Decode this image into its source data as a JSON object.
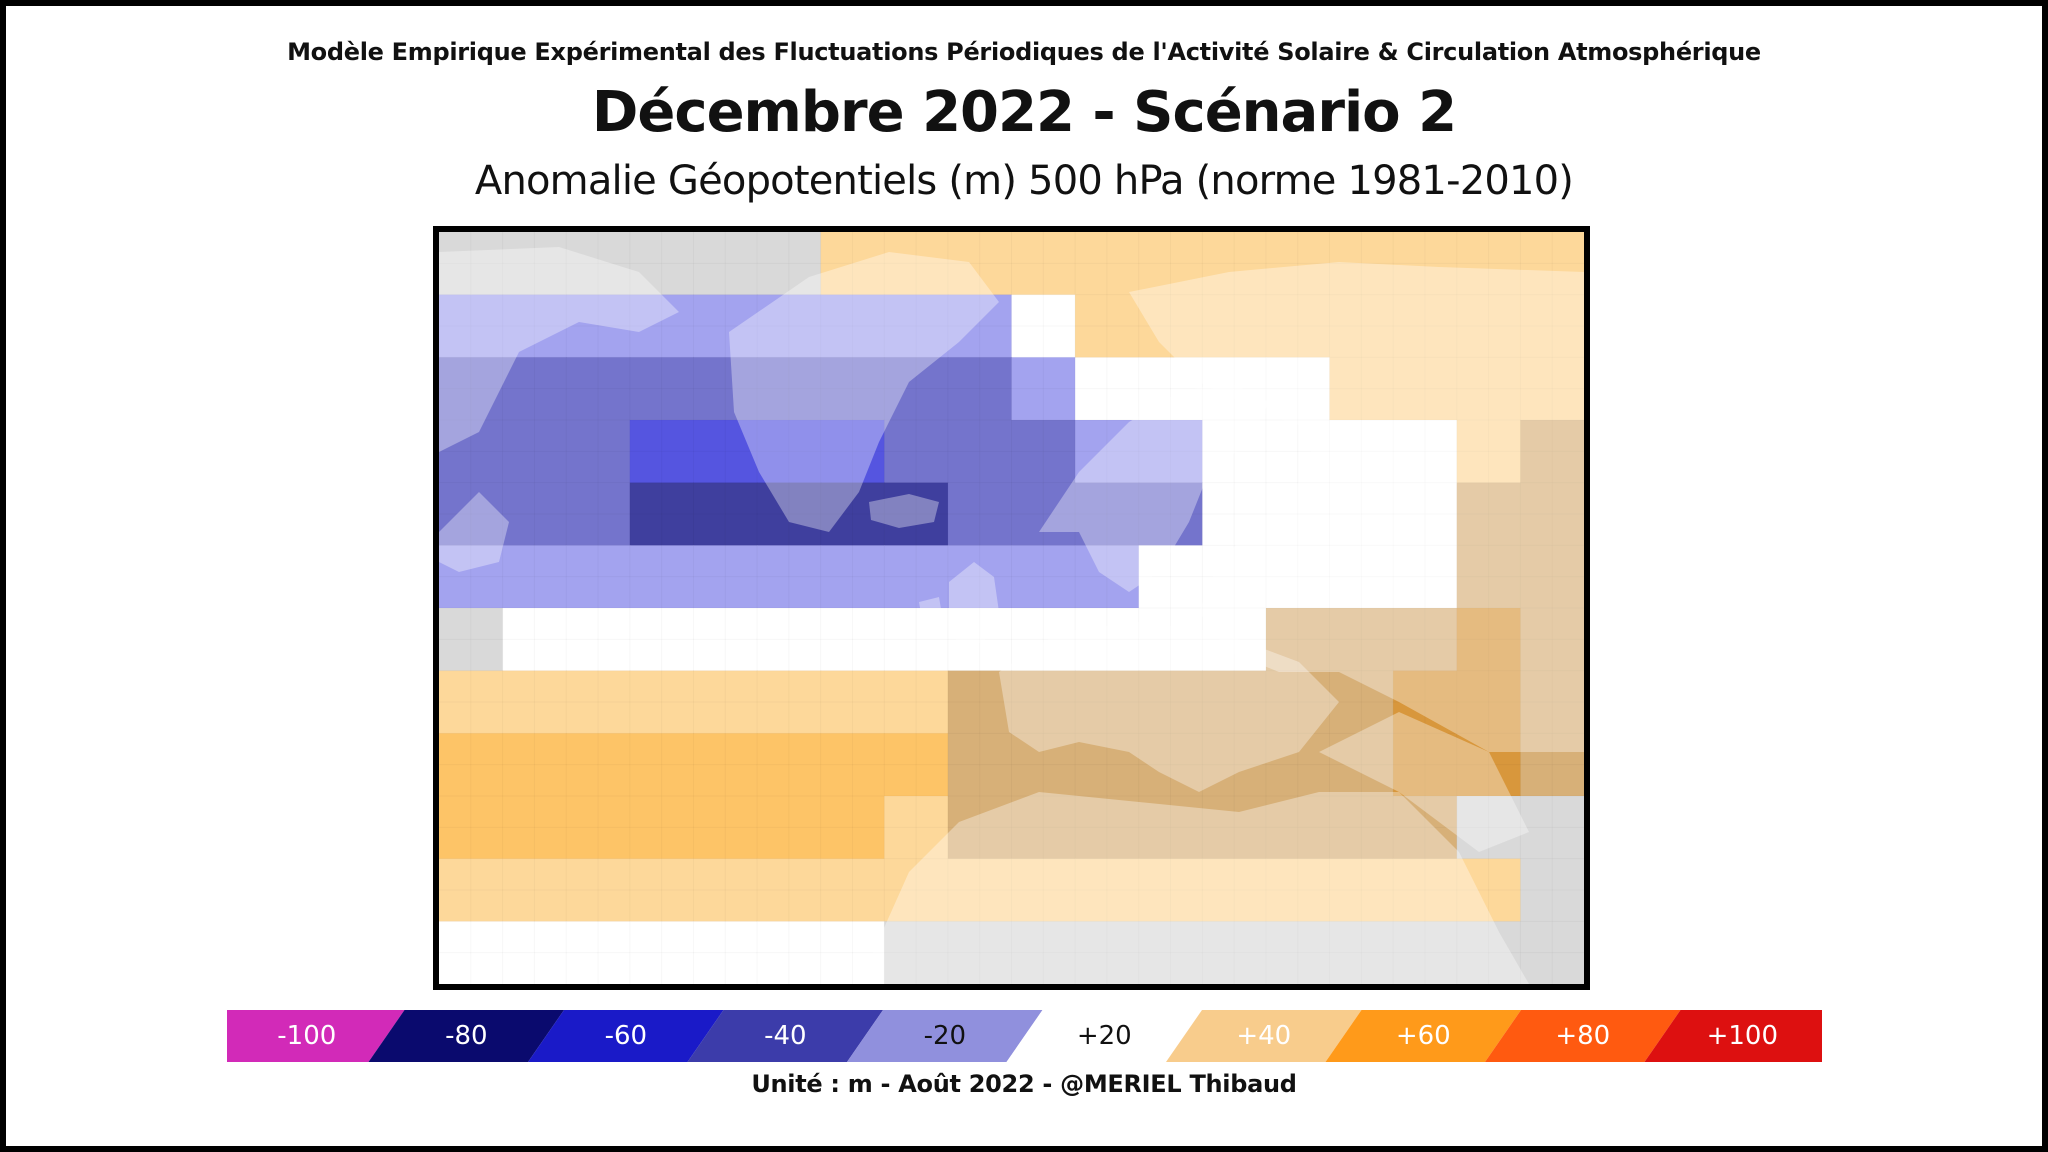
{
  "header": {
    "supertitle": "Modèle Empirique Expérimental des Fluctuations Périodiques de l'Activité Solaire & Circulation Atmosphérique",
    "title": "Décembre 2022 - Scénario 2",
    "subtitle": "Anomalie Géopotentiels (m) 500 hPa (norme 1981-2010)"
  },
  "footer": {
    "text": "Unité : m - Août 2022 - @MERIEL Thibaud"
  },
  "colors": {
    "grey": "#d9d9d9",
    "white": "#ffffff",
    "blue_light": "#a3a3ef",
    "blue_mid": "#7474cc",
    "blue_dark": "#3f3f9e",
    "blue_bright": "#5555e0",
    "orange_light": "#fdd89a",
    "orange_mid": "#fdc467",
    "tan": "#d7b078",
    "tan_dark": "#d8973c"
  },
  "chart_data": {
    "type": "heatmap",
    "rows": 12,
    "cols": 18,
    "legend": "d=blue_dark b=blue_mid l=blue_light B=blue_bright w=white g=grey o=orange_light O=orange_mid t=tan T=tan_dark",
    "grid": [
      "ggggggoooooooooooo",
      "lllllllllwoooooooo",
      "bbbbbbbbblwwwwoooo",
      "bbbBBBBbbbllwwwwot",
      "bbbdddddbbbbwwwwtt",
      "lllllllllllwwwwwtt",
      "gwwwwwwwwwwwwtttTt",
      "ooooooootttttttTTt",
      "OOOOOOOOtttttttTTt",
      "OOOOOOOottttttttgg",
      "ooooooooooooooooog",
      "wwwwwwwggggggggggg"
    ],
    "colorbar": {
      "labels": [
        "-100",
        "-80",
        "-60",
        "-40",
        "-20",
        "+20",
        "+40",
        "+60",
        "+80",
        "+100"
      ],
      "colors": [
        "#d22ab8",
        "#0a0a6e",
        "#1a1ac8",
        "#3c3caa",
        "#9090dd",
        "#ffffff",
        "#f8cc8c",
        "#ff9a1a",
        "#ff5a10",
        "#dd1010"
      ]
    }
  }
}
